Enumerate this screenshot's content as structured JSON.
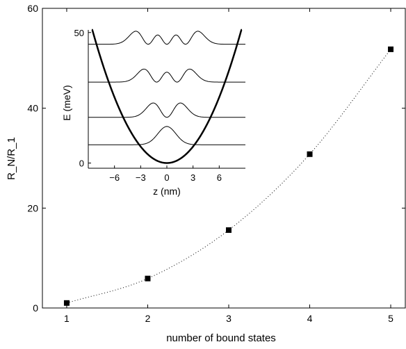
{
  "chart_data": [
    {
      "type": "scatter",
      "xlabel": "number of bound states",
      "ylabel": "R_N/R_1",
      "xlim": [
        0.7,
        5.18
      ],
      "ylim": [
        0,
        60
      ],
      "xticks": [
        1,
        2,
        3,
        4,
        5
      ],
      "yticks": [
        0,
        20,
        40,
        60
      ],
      "grid": false,
      "series": [
        {
          "x": [
            1,
            2,
            3,
            4,
            5
          ],
          "values": [
            1.0,
            5.9,
            15.6,
            30.8,
            51.8
          ]
        }
      ],
      "fit_curve": {
        "style": "dotted",
        "color": "#000000"
      }
    },
    {
      "type": "line",
      "role": "inset",
      "xlabel": "z (nm)",
      "ylabel": "E (meV)",
      "xlim": [
        -9,
        9
      ],
      "ylim": [
        -2,
        51
      ],
      "xticks": [
        -6,
        -3,
        0,
        3,
        6
      ],
      "yticks": [
        0,
        50
      ],
      "potential": {
        "form": "0.7*z^2",
        "unit": "meV"
      },
      "wavefunction_baselines": [
        7,
        17.5,
        31,
        45.5
      ],
      "grid": false
    }
  ]
}
